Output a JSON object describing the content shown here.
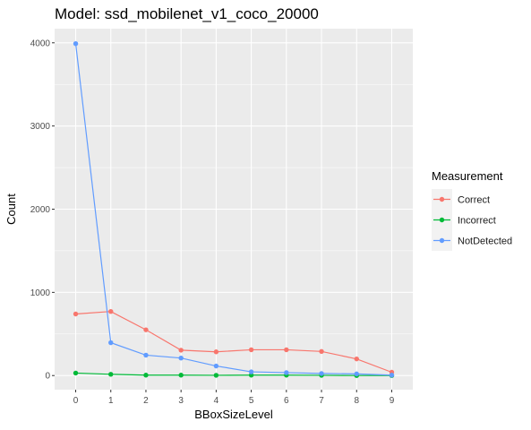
{
  "chart_data": {
    "type": "line",
    "title": "Model: ssd_mobilenet_v1_coco_20000",
    "xlabel": "BBoxSizeLevel",
    "ylabel": "Count",
    "x": [
      0,
      1,
      2,
      3,
      4,
      5,
      6,
      7,
      8,
      9
    ],
    "xlim": [
      -0.6,
      9.6
    ],
    "ylim": [
      -170,
      4170
    ],
    "y_ticks": [
      0,
      1000,
      2000,
      3000,
      4000
    ],
    "grid": true,
    "legend_title": "Measurement",
    "legend_position": "right",
    "series": [
      {
        "name": "Correct",
        "color": "#F8766D",
        "values": [
          740,
          770,
          550,
          305,
          285,
          310,
          310,
          290,
          200,
          40
        ]
      },
      {
        "name": "Incorrect",
        "color": "#00BA38",
        "values": [
          30,
          15,
          5,
          5,
          3,
          5,
          5,
          3,
          0,
          0
        ]
      },
      {
        "name": "NotDetected",
        "color": "#619CFF",
        "values": [
          3990,
          395,
          245,
          210,
          115,
          45,
          35,
          25,
          20,
          5
        ]
      }
    ]
  }
}
